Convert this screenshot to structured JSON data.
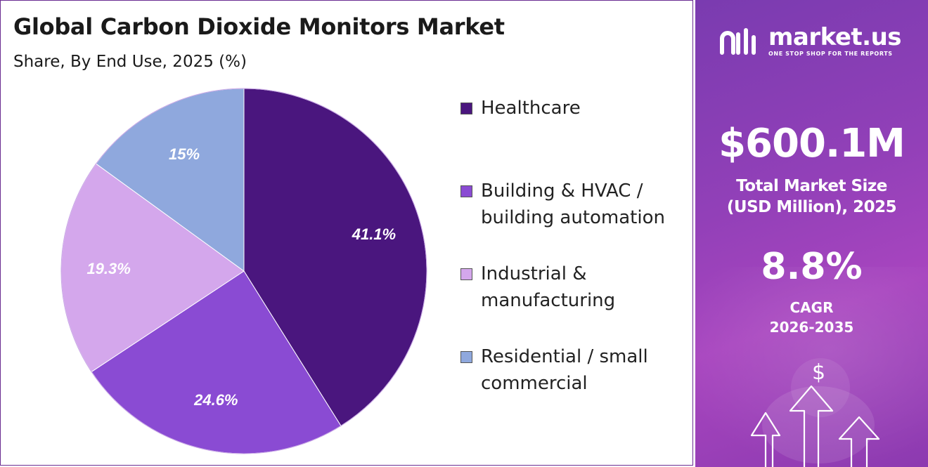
{
  "title": "Global Carbon Dioxide Monitors Market",
  "subtitle": "Share, By End Use, 2025 (%)",
  "chart_data": {
    "type": "pie",
    "title": "Global Carbon Dioxide Monitors Market",
    "subtitle": "Share, By End Use, 2025 (%)",
    "categories": [
      "Healthcare",
      "Building & HVAC / building automation",
      "Industrial & manufacturing",
      "Residential / small commercial"
    ],
    "legend_lines": [
      [
        "Healthcare"
      ],
      [
        "Building & HVAC /",
        "building automation"
      ],
      [
        "Industrial &",
        "manufacturing"
      ],
      [
        "Residential / small",
        "commercial"
      ]
    ],
    "values": [
      41.1,
      24.6,
      19.3,
      15
    ],
    "labels": [
      "41.1%",
      "24.6%",
      "19.3%",
      "15%"
    ],
    "colors": [
      "#4a167e",
      "#8a4bd3",
      "#d4a7ec",
      "#8fa8dd"
    ],
    "legend_placement": "right"
  },
  "brand": {
    "name": "market.us",
    "tagline": "ONE STOP SHOP FOR THE REPORTS"
  },
  "stats": {
    "market_size": "$600.1M",
    "market_size_label_line1": "Total Market Size",
    "market_size_label_line2": "(USD Million), 2025",
    "cagr": "8.8%",
    "cagr_label_line1": "CAGR",
    "cagr_label_line2": "2026-2035",
    "currency_symbol": "$"
  },
  "colors": {
    "panel_accent": "#9240b8",
    "border": "#6a2c91"
  },
  "icons": [
    "market-us-logo-icon",
    "dollar-icon",
    "up-arrow-icon"
  ]
}
